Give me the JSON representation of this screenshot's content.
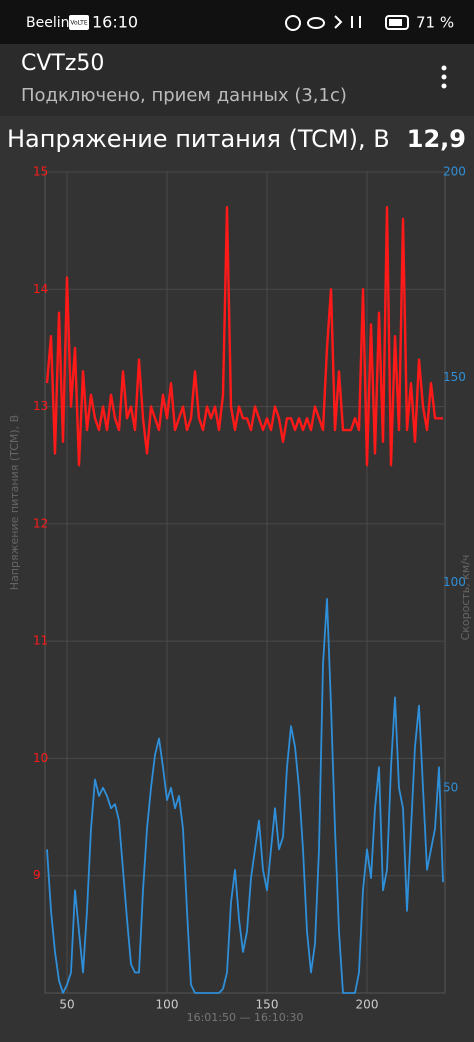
{
  "status_bar": {
    "carrier": "Beeline",
    "network": "VoLTE",
    "time": "16:10",
    "battery": "71 %"
  },
  "app_bar": {
    "title": "CVTz50",
    "subtitle": "Подключено, прием данных (3,1с)"
  },
  "header": {
    "label": "Напряжение питания (TCM), В",
    "value": "12,9"
  },
  "chart_data": {
    "type": "line",
    "grid": true,
    "y_label": "Напряжение питания (TCM), В",
    "y2_label": "Скорость, км/ч",
    "x_label": "16:01:50 — 16:10:30",
    "xlim": [
      39,
      239
    ],
    "xticks": [
      50,
      100,
      150,
      200
    ],
    "ylim": [
      8,
      15
    ],
    "yticks": [
      9,
      10,
      11,
      12,
      13,
      14,
      15
    ],
    "y2lim": [
      0,
      200
    ],
    "y2ticks": [
      50,
      100,
      150,
      200
    ],
    "x": [
      40,
      42,
      44,
      46,
      48,
      50,
      52,
      54,
      56,
      58,
      60,
      62,
      64,
      66,
      68,
      70,
      72,
      74,
      76,
      78,
      80,
      82,
      84,
      86,
      88,
      90,
      92,
      94,
      96,
      98,
      100,
      102,
      104,
      106,
      108,
      110,
      112,
      114,
      116,
      118,
      120,
      122,
      124,
      126,
      128,
      130,
      132,
      134,
      136,
      138,
      140,
      142,
      144,
      146,
      148,
      150,
      152,
      154,
      156,
      158,
      160,
      162,
      164,
      166,
      168,
      170,
      172,
      174,
      176,
      178,
      180,
      182,
      184,
      186,
      188,
      190,
      192,
      194,
      196,
      198,
      200,
      202,
      204,
      206,
      208,
      210,
      212,
      214,
      216,
      218,
      220,
      222,
      224,
      226,
      228,
      230,
      232,
      234,
      236,
      238
    ],
    "series": [
      {
        "name": "Напряжение питания (TCM), В",
        "color": "#ff1a1a",
        "axis": "y",
        "values": [
          13.2,
          13.6,
          12.6,
          13.8,
          12.7,
          14.1,
          13.0,
          13.5,
          12.5,
          13.3,
          12.8,
          13.1,
          12.9,
          12.8,
          13.0,
          12.8,
          13.1,
          12.9,
          12.8,
          13.3,
          12.9,
          13.0,
          12.8,
          13.4,
          12.9,
          12.6,
          13.0,
          12.9,
          12.8,
          13.1,
          12.9,
          13.2,
          12.8,
          12.9,
          13.0,
          12.8,
          12.9,
          13.3,
          12.9,
          12.8,
          13.0,
          12.9,
          13.0,
          12.8,
          13.1,
          14.7,
          13.0,
          12.8,
          13.0,
          12.9,
          12.9,
          12.8,
          13.0,
          12.9,
          12.8,
          12.9,
          12.8,
          13.0,
          12.9,
          12.7,
          12.9,
          12.9,
          12.8,
          12.9,
          12.8,
          12.9,
          12.8,
          13.0,
          12.9,
          12.8,
          13.5,
          14.0,
          12.8,
          13.3,
          12.8,
          12.8,
          12.8,
          12.9,
          12.8,
          14.0,
          12.5,
          13.7,
          12.6,
          13.8,
          12.7,
          14.7,
          12.5,
          13.6,
          12.8,
          14.6,
          12.8,
          13.2,
          12.7,
          13.4,
          13.0,
          12.8,
          13.2,
          12.9,
          12.9,
          12.9
        ]
      },
      {
        "name": "Скорость, км/ч",
        "color": "#2f8fd8",
        "axis": "y2",
        "values": [
          35,
          20,
          10,
          3,
          0,
          2,
          5,
          25,
          15,
          5,
          20,
          40,
          52,
          48,
          50,
          48,
          45,
          46,
          42,
          30,
          18,
          7,
          5,
          5,
          25,
          40,
          50,
          58,
          62,
          55,
          47,
          50,
          45,
          48,
          40,
          20,
          2,
          0,
          0,
          0,
          0,
          0,
          0,
          0,
          1,
          5,
          22,
          30,
          18,
          10,
          15,
          28,
          35,
          42,
          30,
          25,
          35,
          45,
          35,
          38,
          55,
          65,
          60,
          50,
          35,
          15,
          5,
          12,
          35,
          80,
          96,
          70,
          40,
          15,
          0,
          0,
          0,
          0,
          5,
          25,
          35,
          28,
          45,
          55,
          25,
          30,
          55,
          72,
          50,
          45,
          20,
          40,
          60,
          70,
          50,
          30,
          35,
          40,
          55,
          27
        ]
      }
    ]
  }
}
